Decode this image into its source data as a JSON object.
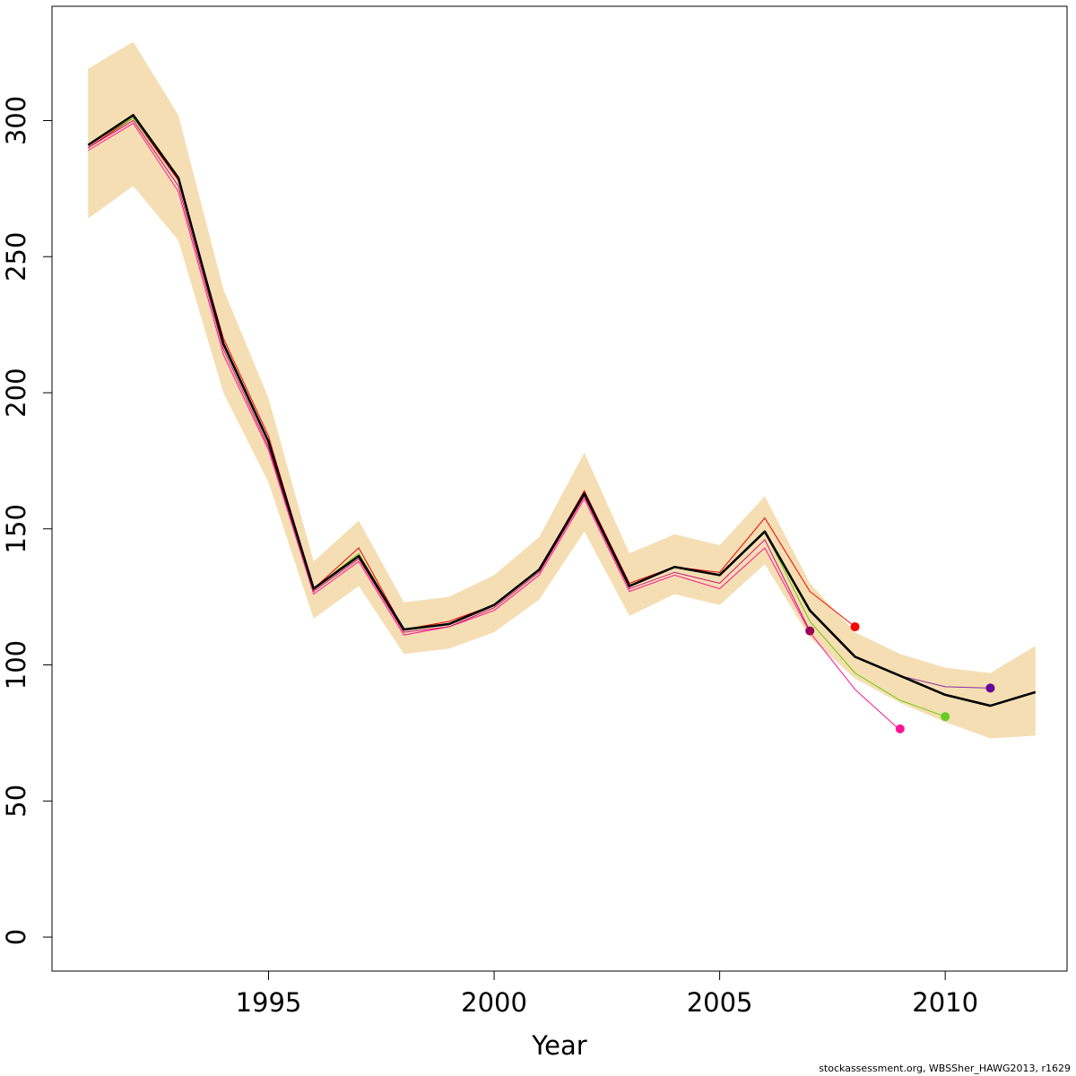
{
  "chart_data": {
    "type": "line",
    "title": "",
    "xlabel": "Year",
    "ylabel": "",
    "xlim": [
      1990.2,
      2012.7
    ],
    "ylim": [
      -12.5,
      342
    ],
    "xticks": [
      1995,
      2000,
      2005,
      2010
    ],
    "yticks": [
      0,
      50,
      100,
      150,
      200,
      250,
      300
    ],
    "grid": false,
    "legend": "none",
    "band": {
      "color": "#F5DEB3",
      "x": [
        1991,
        1992,
        1993,
        1994,
        1995,
        1996,
        1997,
        1998,
        1999,
        2000,
        2001,
        2002,
        2003,
        2004,
        2005,
        2006,
        2007,
        2008,
        2009,
        2010,
        2011,
        2012
      ],
      "lower": [
        264,
        276,
        256,
        200,
        167,
        117,
        129,
        104,
        106,
        112,
        124,
        149,
        118,
        126,
        122,
        137,
        110,
        95,
        86,
        79,
        73,
        74
      ],
      "upper": [
        319,
        329,
        302,
        238,
        198,
        138,
        153,
        123,
        125,
        133,
        147,
        178,
        141,
        148,
        144,
        162,
        130,
        112,
        104,
        99,
        97,
        107
      ]
    },
    "retro_series": [
      {
        "color": "#EE0000",
        "x": [
          1991,
          1992,
          1993,
          1994,
          1995,
          1996,
          1997,
          1998,
          1999,
          2000,
          2001,
          2002,
          2003,
          2004,
          2005,
          2006,
          2007,
          2008
        ],
        "values": [
          290,
          301,
          278,
          220,
          184,
          128,
          143,
          113,
          116,
          122,
          135,
          164,
          130,
          136,
          134,
          154,
          127,
          114
        ]
      },
      {
        "color": "#FF1493",
        "x": [
          1991,
          1992,
          1993,
          1994,
          1995,
          1996,
          1997,
          1998,
          1999,
          2000,
          2001,
          2002,
          2003,
          2004,
          2005,
          2006,
          2007,
          2008,
          2009
        ],
        "values": [
          289,
          299,
          274,
          214,
          179,
          126,
          138,
          111,
          114,
          120,
          133,
          161,
          127,
          133,
          128,
          143,
          112,
          91,
          76
        ]
      },
      {
        "color": "#66CC00",
        "x": [
          1991,
          1992,
          1993,
          1994,
          1995,
          1996,
          1997,
          1998,
          1999,
          2000,
          2001,
          2002,
          2003,
          2004,
          2005,
          2006,
          2007,
          2008,
          2009,
          2010
        ],
        "values": [
          291,
          301,
          279,
          218,
          182,
          128,
          141,
          113,
          115,
          122,
          135,
          163,
          129,
          136,
          133,
          149,
          116,
          97,
          87,
          81
        ]
      },
      {
        "color": "#8B2C9E",
        "x": [
          1991,
          1992,
          1993,
          1994,
          1995,
          1996,
          1997,
          1998,
          1999,
          2000,
          2001,
          2002,
          2003,
          2004,
          2005,
          2006,
          2007,
          2008,
          2009,
          2010,
          2011
        ],
        "values": [
          291,
          302,
          279,
          218,
          182,
          128,
          140,
          113,
          115,
          122,
          135,
          163,
          129,
          136,
          133,
          149,
          120,
          103,
          96,
          92,
          91.5
        ]
      },
      {
        "color": "#CC1177",
        "x": [
          1991,
          1992,
          1993,
          1994,
          1995,
          1996,
          1997,
          1998,
          1999,
          2000,
          2001,
          2002,
          2003,
          2004,
          2005,
          2006,
          2007
        ],
        "values": [
          290,
          300,
          276,
          216,
          180,
          127,
          139,
          112,
          114,
          121,
          134,
          162,
          128,
          134,
          130,
          146,
          112.5
        ]
      }
    ],
    "end_points": [
      {
        "x": 2008,
        "y": 114,
        "color": "#FF0000"
      },
      {
        "x": 2009,
        "y": 76.5,
        "color": "#FF1493"
      },
      {
        "x": 2010,
        "y": 81,
        "color": "#66CC22"
      },
      {
        "x": 2011,
        "y": 91.5,
        "color": "#660099"
      },
      {
        "x": 2007,
        "y": 112.5,
        "color": "#990055"
      }
    ],
    "main_series": {
      "color": "#000000",
      "x": [
        1991,
        1992,
        1993,
        1994,
        1995,
        1996,
        1997,
        1998,
        1999,
        2000,
        2001,
        2002,
        2003,
        2004,
        2005,
        2006,
        2007,
        2008,
        2009,
        2010,
        2011,
        2012
      ],
      "values": [
        291,
        302,
        279,
        218,
        182,
        128,
        140,
        113,
        115,
        122,
        135,
        163,
        129,
        136,
        133,
        149,
        120,
        103,
        96,
        89,
        85,
        90
      ]
    }
  },
  "footer": {
    "credit": "stockassessment.org, WBSSher_HAWG2013, r1629"
  }
}
